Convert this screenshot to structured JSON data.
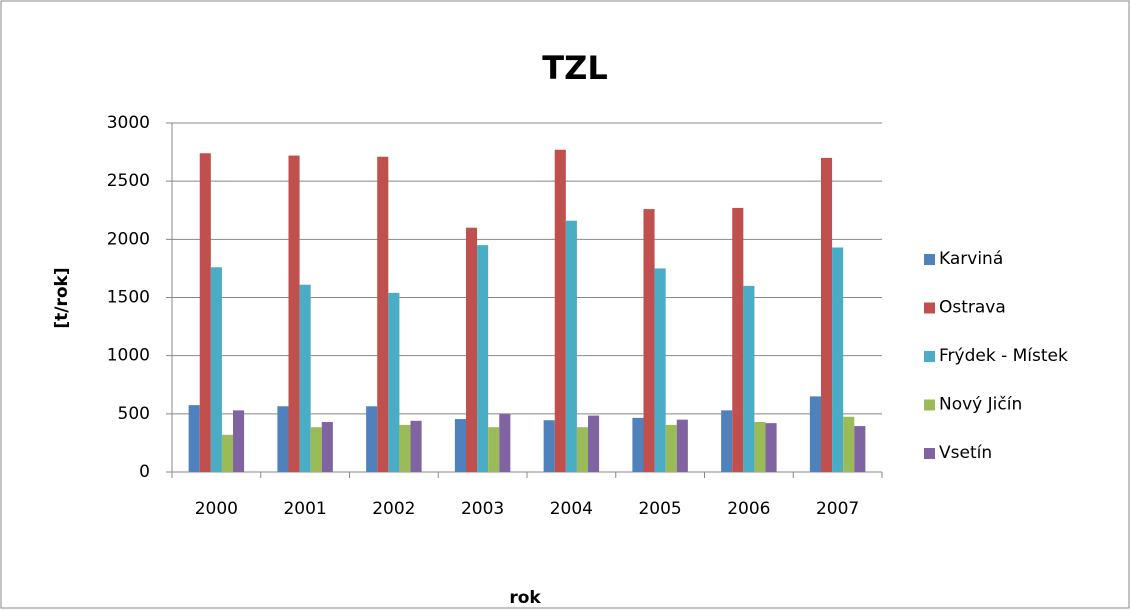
{
  "chart_data": {
    "type": "bar",
    "title": "TZL",
    "x_label": "rok",
    "y_label": "[t/rok]",
    "categories": [
      "2000",
      "2001",
      "2002",
      "2003",
      "2004",
      "2005",
      "2006",
      "2007"
    ],
    "series": [
      {
        "name": "Karviná",
        "color": "#4f81bd",
        "values": [
          575,
          565,
          565,
          455,
          445,
          465,
          530,
          650
        ]
      },
      {
        "name": "Ostrava",
        "color": "#c0504d",
        "values": [
          2740,
          2720,
          2710,
          2100,
          2770,
          2260,
          2270,
          2700
        ]
      },
      {
        "name": "Frýdek - Místek",
        "color": "#4bacc6",
        "values": [
          1760,
          1610,
          1540,
          1950,
          2160,
          1750,
          1600,
          1930
        ]
      },
      {
        "name": "Nový Jičín",
        "color": "#9bbb59",
        "values": [
          320,
          385,
          405,
          385,
          385,
          405,
          430,
          475
        ]
      },
      {
        "name": "Vsetín",
        "color": "#8064a2",
        "values": [
          530,
          430,
          440,
          500,
          485,
          450,
          420,
          395
        ]
      }
    ],
    "ylim": [
      0,
      3000
    ],
    "yticks": [
      0,
      500,
      1000,
      1500,
      2000,
      2500,
      3000
    ],
    "grid": true,
    "legend": "right"
  }
}
